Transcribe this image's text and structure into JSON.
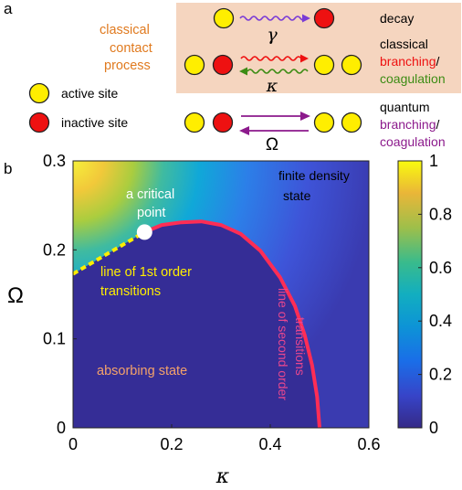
{
  "panel_a": {
    "label": "a",
    "contact_process_label": [
      "classical",
      "contact",
      "process"
    ],
    "legend": {
      "active": "active site",
      "inactive": "inactive site"
    },
    "processes": {
      "decay": {
        "label": "decay",
        "symbol": "γ"
      },
      "classical": {
        "line1": "classical",
        "word2": "branching",
        "slash": "/",
        "word3": "coagulation",
        "symbol": "κ"
      },
      "quantum": {
        "line1": "quantum",
        "word2": "branching",
        "slash": "/",
        "word3": "coagulation",
        "symbol": "Ω"
      }
    },
    "colors": {
      "active_fill": "#ffee00",
      "inactive_fill": "#ee1111",
      "box_bg": "#f5d5bf",
      "orange_text": "#e07a1f",
      "red": "#ee1111",
      "green": "#3c8c14",
      "purple": "#8c1a8c",
      "decay_arrow": "#7a3bd6"
    }
  },
  "panel_b": {
    "label": "b",
    "chart_data": {
      "type": "heatmap",
      "xlabel": "κ",
      "ylabel": "Ω",
      "xlim": [
        0,
        0.6
      ],
      "ylim": [
        0,
        0.3
      ],
      "x_ticks": [
        "0",
        "0.2",
        "0.4",
        "0.6"
      ],
      "y_ticks": [
        "0",
        "0.1",
        "0.2",
        "0.3"
      ],
      "colorbar": {
        "range": [
          0,
          1
        ],
        "ticks": [
          "0",
          "0.2",
          "0.4",
          "0.6",
          "0.8",
          "1"
        ]
      },
      "critical_point": {
        "kappa": 0.145,
        "omega": 0.22
      },
      "second_order_line": [
        [
          0.145,
          0.22
        ],
        [
          0.18,
          0.228
        ],
        [
          0.22,
          0.231
        ],
        [
          0.26,
          0.232
        ],
        [
          0.3,
          0.228
        ],
        [
          0.34,
          0.218
        ],
        [
          0.38,
          0.199
        ],
        [
          0.42,
          0.169
        ],
        [
          0.45,
          0.137
        ],
        [
          0.47,
          0.104
        ],
        [
          0.485,
          0.07
        ],
        [
          0.495,
          0.035
        ],
        [
          0.5,
          0.0
        ]
      ],
      "first_order_line": [
        [
          0.0,
          0.173
        ],
        [
          0.145,
          0.22
        ]
      ],
      "annotations": {
        "finite_density": [
          "finite density",
          "state"
        ],
        "critical_point": [
          "a critical",
          "point"
        ],
        "first_order": [
          "line of 1st order",
          "transitions"
        ],
        "absorbing": "absorbing state",
        "second_order": [
          "line of second order",
          "transitions"
        ]
      },
      "colors": {
        "line2": "#ff2d55",
        "line1": "#ffee00"
      }
    }
  }
}
